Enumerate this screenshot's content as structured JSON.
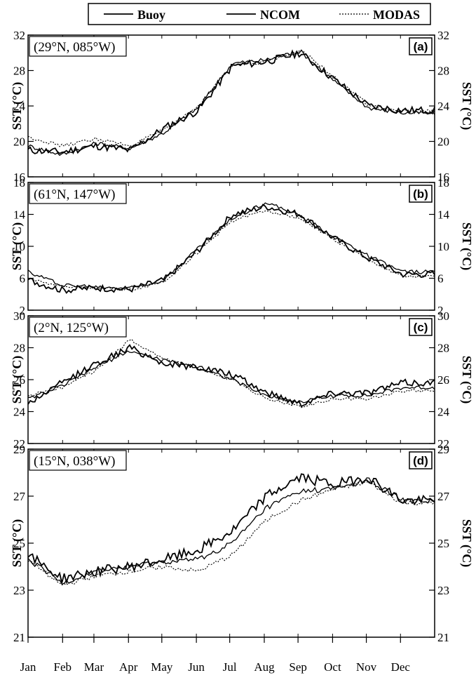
{
  "legend": [
    {
      "name": "Buoy",
      "style": "solid"
    },
    {
      "name": "NCOM",
      "style": "solid"
    },
    {
      "name": "MODAS",
      "style": "dotted"
    }
  ],
  "chart_data": [
    {
      "type": "line",
      "panel": "(a)",
      "location_label": "(29°N, 085°W)",
      "ylabel": "SST (°C)",
      "ylim": [
        16,
        32
      ],
      "yticks": [
        16,
        20,
        24,
        28,
        32
      ],
      "x": [
        "Jan",
        "Feb",
        "Mar",
        "Apr",
        "May",
        "Jun",
        "Jul",
        "Aug",
        "Sep",
        "Oct",
        "Nov",
        "Dec"
      ],
      "series": [
        {
          "name": "Buoy",
          "values": [
            19.0,
            18.8,
            19.5,
            19.0,
            21.5,
            23.5,
            28.5,
            29.0,
            30.0,
            27.0,
            24.0,
            23.5
          ]
        },
        {
          "name": "NCOM",
          "values": [
            19.5,
            18.5,
            19.8,
            19.2,
            21.0,
            23.8,
            28.8,
            29.2,
            30.2,
            26.8,
            23.8,
            23.2
          ]
        },
        {
          "name": "MODAS",
          "values": [
            20.5,
            19.5,
            20.3,
            19.5,
            21.3,
            24.0,
            28.6,
            29.0,
            30.4,
            27.2,
            24.1,
            23.4
          ]
        }
      ]
    },
    {
      "type": "line",
      "panel": "(b)",
      "location_label": "(61°N, 147°W)",
      "ylabel": "SST (°C)",
      "ylim": [
        2,
        18
      ],
      "yticks": [
        2,
        6,
        10,
        14,
        18
      ],
      "x": [
        "Jan",
        "Feb",
        "Mar",
        "Apr",
        "May",
        "Jun",
        "Jul",
        "Aug",
        "Sep",
        "Oct",
        "Nov",
        "Dec"
      ],
      "series": [
        {
          "name": "Buoy",
          "values": [
            5.8,
            4.5,
            4.8,
            4.6,
            5.8,
            9.5,
            14.0,
            15.0,
            14.0,
            11.0,
            8.5,
            6.5
          ]
        },
        {
          "name": "NCOM",
          "values": [
            6.8,
            5.2,
            4.9,
            4.8,
            5.8,
            9.8,
            13.5,
            15.5,
            13.8,
            11.2,
            8.8,
            6.8
          ]
        },
        {
          "name": "MODAS",
          "values": [
            6.0,
            5.0,
            4.8,
            4.5,
            5.6,
            9.3,
            13.2,
            14.5,
            13.5,
            10.8,
            8.3,
            6.2
          ]
        }
      ]
    },
    {
      "type": "line",
      "panel": "(c)",
      "location_label": "(2°N, 125°W)",
      "ylabel": "SST (°C)",
      "ylim": [
        22,
        30
      ],
      "yticks": [
        22,
        24,
        26,
        28,
        30
      ],
      "x": [
        "Jan",
        "Feb",
        "Mar",
        "Apr",
        "May",
        "Jun",
        "Jul",
        "Aug",
        "Sep",
        "Oct",
        "Nov",
        "Dec"
      ],
      "series": [
        {
          "name": "Buoy",
          "values": [
            24.5,
            25.8,
            27.0,
            28.0,
            27.0,
            26.8,
            26.3,
            25.2,
            24.5,
            25.2,
            25.2,
            25.8
          ]
        },
        {
          "name": "NCOM",
          "values": [
            24.8,
            25.6,
            26.8,
            27.8,
            27.2,
            26.8,
            26.0,
            25.0,
            24.6,
            25.0,
            25.0,
            25.5
          ]
        },
        {
          "name": "MODAS",
          "values": [
            25.0,
            25.5,
            26.6,
            28.5,
            27.3,
            26.7,
            26.0,
            24.8,
            24.3,
            24.8,
            24.8,
            25.3
          ]
        }
      ]
    },
    {
      "type": "line",
      "panel": "(d)",
      "location_label": "(15°N, 038°W)",
      "ylabel": "SST (°C)",
      "ylim": [
        21,
        29
      ],
      "yticks": [
        21,
        23,
        25,
        27,
        29
      ],
      "x": [
        "Jan",
        "Feb",
        "Mar",
        "Apr",
        "May",
        "Jun",
        "Jul",
        "Aug",
        "Sep",
        "Oct",
        "Nov",
        "Dec"
      ],
      "series": [
        {
          "name": "Buoy",
          "values": [
            24.5,
            23.5,
            23.8,
            24.0,
            24.3,
            24.7,
            25.5,
            27.0,
            27.8,
            27.5,
            27.8,
            26.8
          ]
        },
        {
          "name": "NCOM",
          "values": [
            24.3,
            23.3,
            23.8,
            24.0,
            24.2,
            24.3,
            25.0,
            26.5,
            27.2,
            27.3,
            27.7,
            26.8
          ]
        },
        {
          "name": "MODAS",
          "values": [
            24.3,
            23.2,
            23.6,
            23.8,
            24.0,
            23.8,
            24.5,
            26.0,
            26.8,
            27.3,
            27.6,
            26.7
          ]
        }
      ]
    }
  ]
}
